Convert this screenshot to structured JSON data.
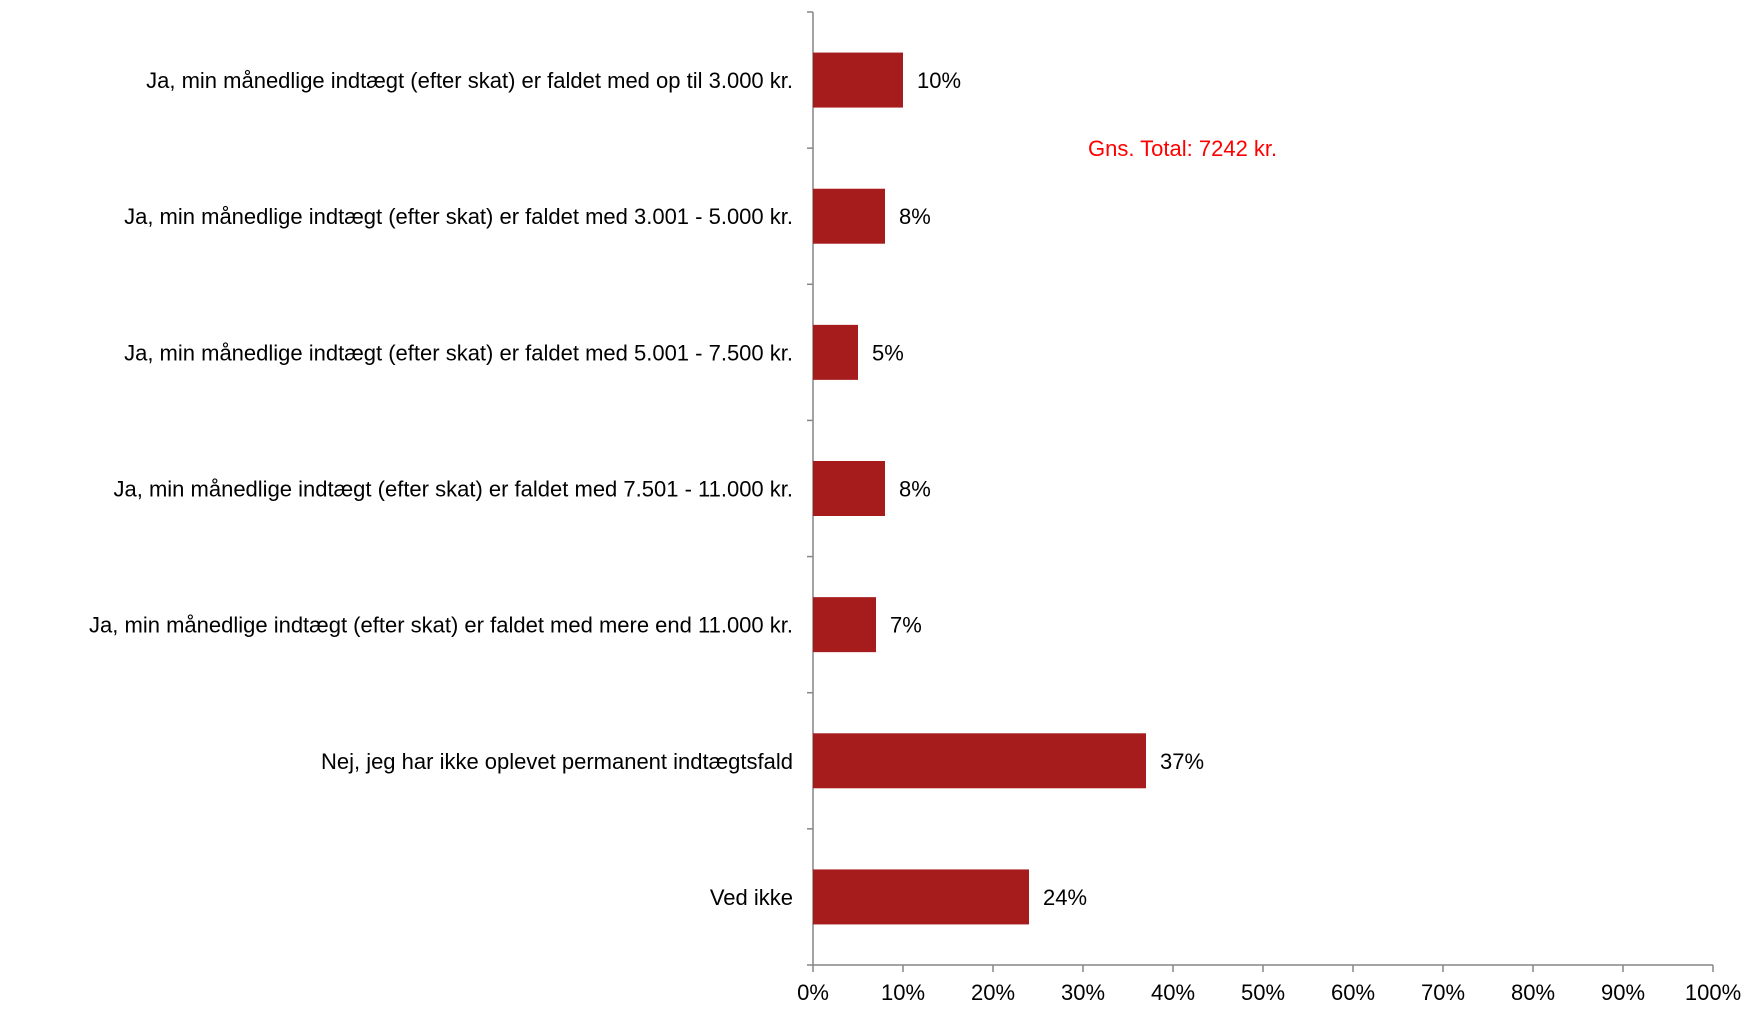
{
  "chart_data": {
    "type": "bar",
    "orientation": "horizontal",
    "categories": [
      "Ja, min månedlige indtægt (efter skat) er faldet med op til 3.000 kr.",
      "Ja, min månedlige indtægt (efter skat) er faldet med 3.001 - 5.000 kr.",
      "Ja, min månedlige indtægt (efter skat) er faldet med 5.001 - 7.500 kr.",
      "Ja, min månedlige indtægt (efter skat) er faldet med 7.501 - 11.000 kr.",
      "Ja, min månedlige indtægt (efter skat) er faldet med mere end 11.000 kr.",
      "Nej, jeg har ikke oplevet permanent indtægtsfald",
      "Ved ikke"
    ],
    "values": [
      10,
      8,
      5,
      8,
      7,
      37,
      24
    ],
    "value_labels": [
      "10%",
      "8%",
      "5%",
      "8%",
      "7%",
      "37%",
      "24%"
    ],
    "xlim": [
      0,
      100
    ],
    "x_ticks": [
      "0%",
      "10%",
      "20%",
      "30%",
      "40%",
      "50%",
      "60%",
      "70%",
      "80%",
      "90%",
      "100%"
    ],
    "grid": false,
    "legend": "none",
    "bar_color": "#A61C1C",
    "annotation": {
      "text": "Gns. Total: 7242 kr.",
      "color": "#FF0000",
      "position": "top-right"
    }
  }
}
